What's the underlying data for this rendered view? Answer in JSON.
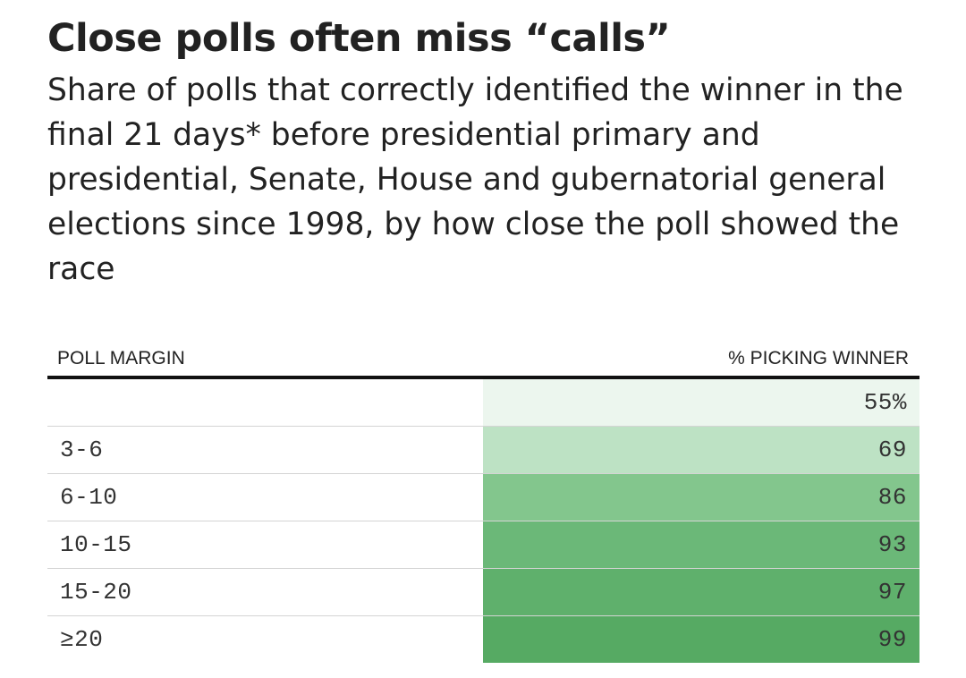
{
  "chart_data": {
    "type": "table",
    "title": "Close polls often miss “calls”",
    "subtitle": "Share of polls that correctly identified the winner in the final 21 days* before presidential primary and presidential, Senate, House and gubernatorial general elections since 1998, by how close the poll showed the race",
    "columns": [
      "POLL MARGIN",
      "% PICKING WINNER"
    ],
    "rows": [
      {
        "margin": "",
        "value": 55,
        "display": "55%",
        "color": "#ecf6ee"
      },
      {
        "margin": "3-6",
        "value": 69,
        "display": "69",
        "color": "#bde2c4"
      },
      {
        "margin": "6-10",
        "value": 86,
        "display": "86",
        "color": "#83c68d"
      },
      {
        "margin": "10-15",
        "value": 93,
        "display": "93",
        "color": "#6bb878"
      },
      {
        "margin": "15-20",
        "value": 97,
        "display": "97",
        "color": "#5fb06c"
      },
      {
        "margin": "≥20",
        "value": 99,
        "display": "99",
        "color": "#56aa63"
      }
    ]
  }
}
